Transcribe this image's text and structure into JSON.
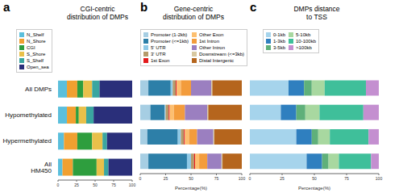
{
  "chart_data": [
    {
      "type": "bar",
      "orientation": "horizontal",
      "stacked": true,
      "legend": "top",
      "annotations": [
        "a"
      ],
      "title": "CGI-centric\ndistribution of DMPs",
      "categories": [
        "All DMPs",
        "Hypomethylated",
        "Hypermethylated",
        "All HM450"
      ],
      "xlim": [
        0,
        100
      ],
      "xticks": [
        0,
        25,
        50,
        75,
        100
      ],
      "series": [
        {
          "name": "N_Shelf",
          "color": "#5bbfdc",
          "values": [
            12,
            12,
            8,
            6
          ]
        },
        {
          "name": "N_Shore",
          "color": "#f0a030",
          "values": [
            14,
            12,
            18,
            14
          ]
        },
        {
          "name": "CGI",
          "color": "#2e9e3e",
          "values": [
            8,
            4,
            20,
            32
          ]
        },
        {
          "name": "S_Shore",
          "color": "#e8c04a",
          "values": [
            12,
            10,
            14,
            10
          ]
        },
        {
          "name": "S_Shelf",
          "color": "#3aa6a0",
          "values": [
            10,
            10,
            6,
            6
          ]
        },
        {
          "name": "Open_sea",
          "color": "#2a2f7a",
          "values": [
            44,
            52,
            34,
            32
          ]
        }
      ]
    },
    {
      "type": "bar",
      "orientation": "horizontal",
      "stacked": true,
      "legend": "top",
      "tick_labels": "x",
      "annotations": [
        "b"
      ],
      "title": "Gene-centric\ndistribution of DMPs",
      "xlabel": "Percentage(%)",
      "categories": [
        "All DMPs",
        "Hypomethylated",
        "Hypermethylated",
        "All HM450"
      ],
      "xlim": [
        0,
        100
      ],
      "xticks": [
        0,
        25,
        50,
        75,
        100
      ],
      "series": [
        {
          "name": "Promoter (1-2kb)",
          "color": "#a6cee3",
          "values": [
            8,
            10,
            7,
            8
          ]
        },
        {
          "name": "Promoter (<=1kb)",
          "color": "#2d7fa8",
          "values": [
            22,
            14,
            30,
            38
          ]
        },
        {
          "name": "5' UTR",
          "color": "#8fc9e6",
          "values": [
            2,
            1,
            3,
            4
          ]
        },
        {
          "name": "3' UTR",
          "color": "#b49a6a",
          "values": [
            3,
            3,
            3,
            3
          ]
        },
        {
          "name": "1st Exon",
          "color": "#e31a1c",
          "values": [
            1,
            1,
            1,
            1
          ]
        },
        {
          "name": "Other Exon",
          "color": "#fdbf6f",
          "values": [
            4,
            4,
            4,
            4
          ]
        },
        {
          "name": "1st Intron",
          "color": "#f39c3c",
          "values": [
            10,
            11,
            8,
            8
          ]
        },
        {
          "name": "Other Intron",
          "color": "#9b7fc0",
          "values": [
            20,
            22,
            16,
            14
          ]
        },
        {
          "name": "Downstream (<=3kb)",
          "color": "#d8c8a0",
          "values": [
            1,
            1,
            1,
            1
          ]
        },
        {
          "name": "Distal Intergenic",
          "color": "#b5651d",
          "values": [
            29,
            33,
            27,
            19
          ]
        }
      ]
    },
    {
      "type": "bar",
      "orientation": "horizontal",
      "stacked": true,
      "legend": "top",
      "tick_labels": "x",
      "annotations": [
        "c"
      ],
      "title": "DMPs distance\nto TSS",
      "xlabel": "Percentage(%)",
      "categories": [
        "All DMPs",
        "Hypomethylated",
        "Hypermethylated",
        "All HM450"
      ],
      "xlim": [
        0,
        100
      ],
      "xticks": [
        0,
        25,
        50,
        75,
        100
      ],
      "series": [
        {
          "name": "0-1kb",
          "color": "#a6d4ec",
          "values": [
            30,
            24,
            36,
            44
          ]
        },
        {
          "name": "1-3kb",
          "color": "#2f7fbf",
          "values": [
            12,
            12,
            12,
            12
          ]
        },
        {
          "name": "3-5kb",
          "color": "#5fb07a",
          "values": [
            6,
            7,
            5,
            5
          ]
        },
        {
          "name": "5-10kb",
          "color": "#a8d8a0",
          "values": [
            10,
            11,
            9,
            8
          ]
        },
        {
          "name": "10-100kb",
          "color": "#3fbf9a",
          "values": [
            32,
            34,
            30,
            25
          ]
        },
        {
          "name": ">100kb",
          "color": "#c48fd0",
          "values": [
            10,
            12,
            8,
            6
          ]
        }
      ]
    }
  ]
}
